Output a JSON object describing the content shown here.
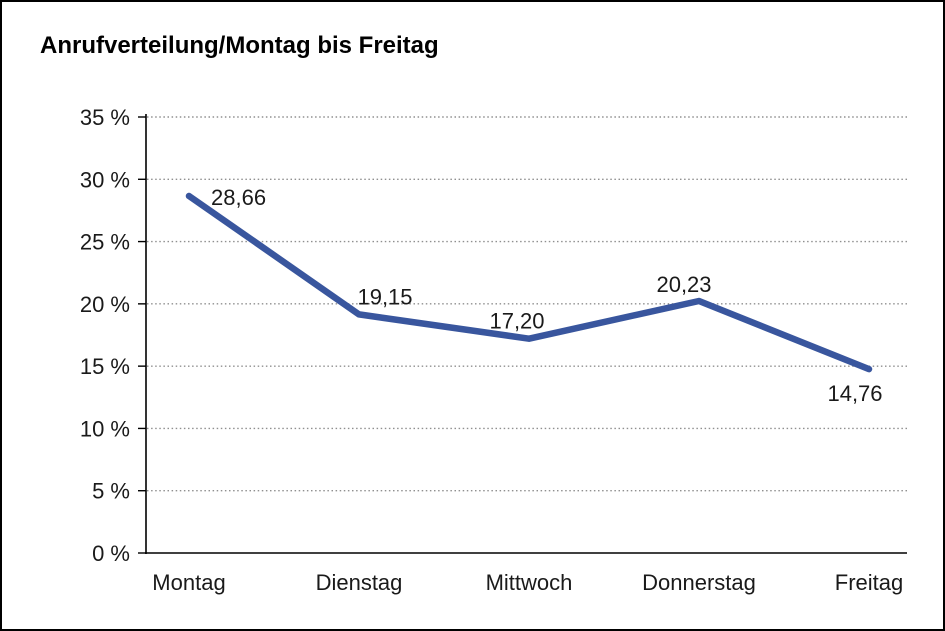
{
  "chart_data": {
    "type": "line",
    "title": "Anrufverteilung/Montag bis Freitag",
    "categories": [
      "Montag",
      "Dienstag",
      "Mittwoch",
      "Donnerstag",
      "Freitag"
    ],
    "values": [
      28.66,
      19.15,
      17.2,
      20.23,
      14.76
    ],
    "value_labels": [
      "28,66",
      "19,15",
      "17,20",
      "20,23",
      "14,76"
    ],
    "xlabel": "",
    "ylabel": "",
    "ylim": [
      0,
      35
    ],
    "y_ticks": [
      {
        "value": 0,
        "label": "0 %"
      },
      {
        "value": 5,
        "label": "5 %"
      },
      {
        "value": 10,
        "label": "10 %"
      },
      {
        "value": 15,
        "label": "15 %"
      },
      {
        "value": 20,
        "label": "20 %"
      },
      {
        "value": 25,
        "label": "25 %"
      },
      {
        "value": 30,
        "label": "30 %"
      },
      {
        "value": 35,
        "label": "35 %"
      }
    ],
    "grid": "horizontal-dotted",
    "legend": "none"
  },
  "colors": {
    "line": "#39569e",
    "grid": "#8f8f8f",
    "axis": "#000000",
    "text": "#1a1a1a",
    "background": "#ffffff",
    "frame_border": "#000000"
  }
}
